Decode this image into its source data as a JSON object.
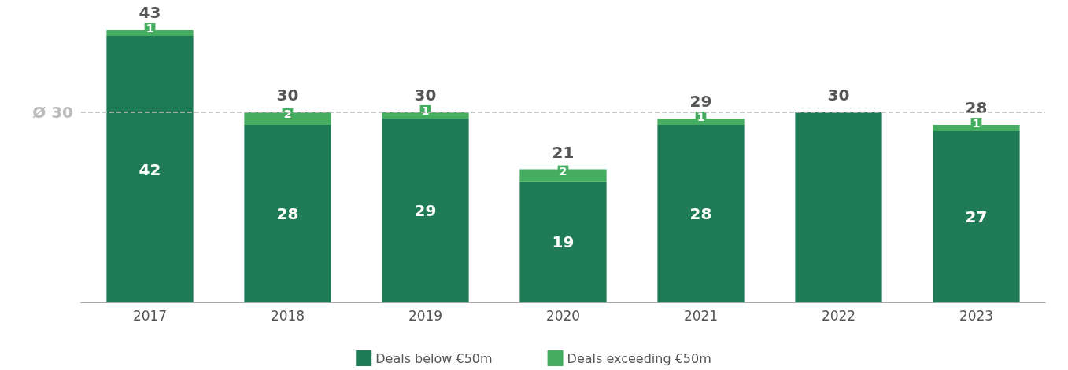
{
  "chart_data": {
    "type": "bar",
    "stacked": true,
    "categories": [
      "2017",
      "2018",
      "2019",
      "2020",
      "2021",
      "2022",
      "2023"
    ],
    "series": [
      {
        "name": "Deals below €50m",
        "color": "#1e7b55",
        "values": [
          42,
          28,
          29,
          19,
          28,
          30,
          27
        ],
        "value_labels": [
          "42",
          "28",
          "29",
          "19",
          "28",
          null,
          "27"
        ]
      },
      {
        "name": "Deals exceeding €50m",
        "color": "#44ad60",
        "values": [
          1,
          2,
          1,
          2,
          1,
          0,
          1
        ],
        "value_labels": [
          "1",
          "2",
          "1",
          "2",
          "1",
          null,
          "1"
        ]
      }
    ],
    "totals": [
      "43",
      "30",
      "30",
      "21",
      "29",
      "30",
      "28"
    ],
    "ref_lines": [
      {
        "axis": "y",
        "value": 30,
        "label": "Ø 30",
        "color": "#bbbbbb",
        "line_style": "dashed"
      }
    ],
    "legend": "bottom"
  }
}
